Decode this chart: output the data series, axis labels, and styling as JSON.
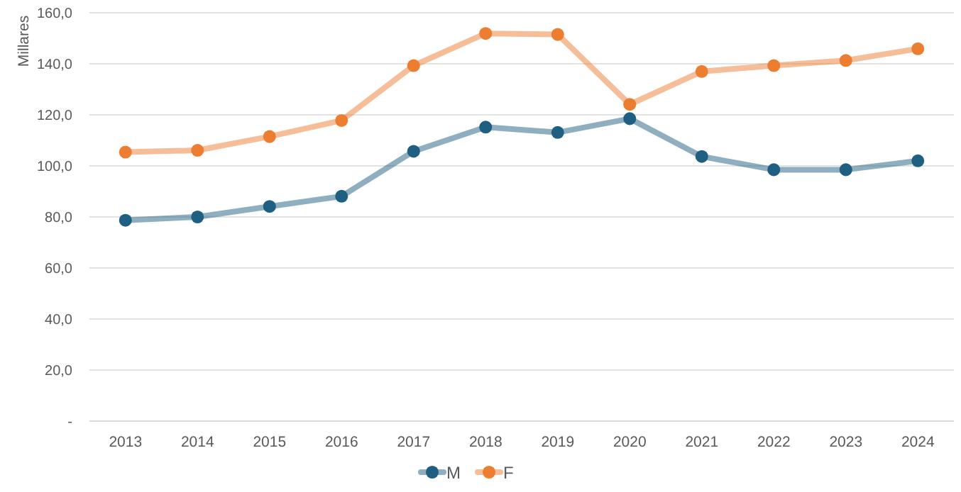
{
  "chart_data": {
    "type": "line",
    "ylabel": "Millares",
    "categories": [
      "2013",
      "2014",
      "2015",
      "2016",
      "2017",
      "2018",
      "2019",
      "2020",
      "2021",
      "2022",
      "2023",
      "2024"
    ],
    "series": [
      {
        "name": "M",
        "color": "#1f5f82",
        "values": [
          78.7,
          80,
          84.1,
          88.1,
          105.7,
          115.2,
          113.1,
          118.5,
          103.7,
          98.5,
          98.5,
          102
        ]
      },
      {
        "name": "F",
        "color": "#ed7d31",
        "values": [
          105.4,
          106.1,
          111.5,
          117.8,
          139.3,
          151.9,
          151.5,
          124.1,
          137,
          139.3,
          141.3,
          145.9
        ]
      }
    ],
    "ylim": [
      0,
      160
    ],
    "yticks": [
      {
        "value": 0,
        "label": "-"
      },
      {
        "value": 20,
        "label": "20,0"
      },
      {
        "value": 40,
        "label": "40,0"
      },
      {
        "value": 60,
        "label": "60,0"
      },
      {
        "value": 80,
        "label": "80,0"
      },
      {
        "value": 100,
        "label": "100,0"
      },
      {
        "value": 120,
        "label": "120,0"
      },
      {
        "value": 140,
        "label": "140,0"
      },
      {
        "value": 160,
        "label": "160,0"
      }
    ],
    "grid": "y",
    "legend": "bottom",
    "marker": "circle",
    "line_style": "solid"
  }
}
